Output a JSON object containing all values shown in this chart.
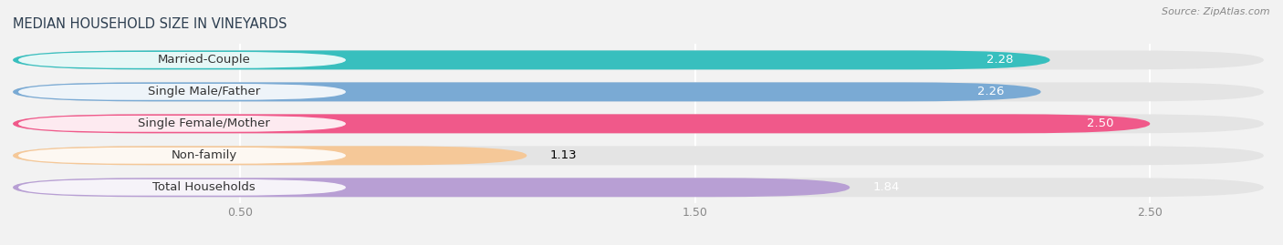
{
  "title": "MEDIAN HOUSEHOLD SIZE IN VINEYARDS",
  "source": "Source: ZipAtlas.com",
  "categories": [
    "Married-Couple",
    "Single Male/Father",
    "Single Female/Mother",
    "Non-family",
    "Total Households"
  ],
  "values": [
    2.28,
    2.26,
    2.5,
    1.13,
    1.84
  ],
  "bar_colors": [
    "#38bfbe",
    "#7aaad4",
    "#f0598a",
    "#f5c898",
    "#b89fd4"
  ],
  "value_colors": [
    "white",
    "white",
    "white",
    "black",
    "white"
  ],
  "xlim_max": 2.75,
  "xticks": [
    0.5,
    1.5,
    2.5
  ],
  "xtick_labels": [
    "0.50",
    "1.50",
    "2.50"
  ],
  "bg_color": "#f2f2f2",
  "bar_bg_color": "#e4e4e4",
  "title_color": "#2d3e50",
  "title_fontsize": 10.5,
  "label_fontsize": 9.5,
  "value_fontsize": 9.5
}
